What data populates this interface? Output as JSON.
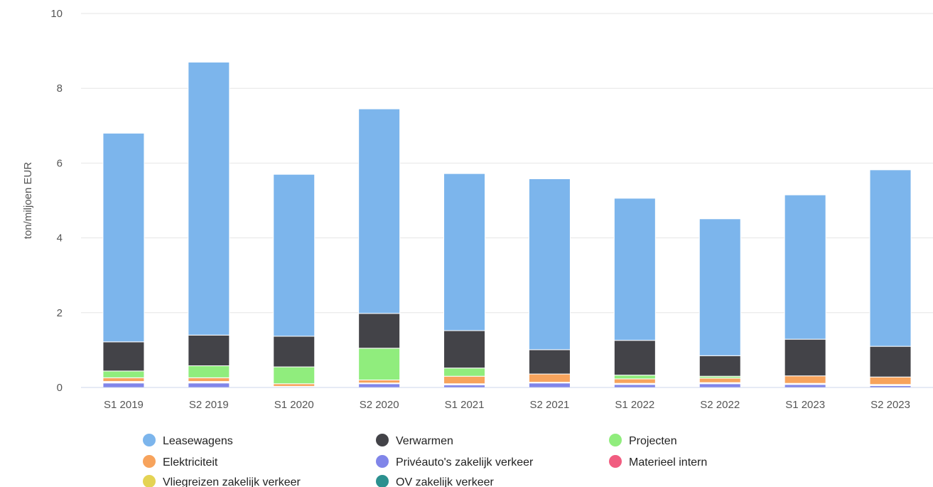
{
  "chart_data": {
    "type": "bar",
    "stacked": true,
    "title": "",
    "xlabel": "",
    "ylabel": "ton/miljoen EUR",
    "ylim": [
      0,
      10
    ],
    "yticks": [
      0,
      2,
      4,
      6,
      8,
      10
    ],
    "grid": true,
    "legend_position": "bottom",
    "categories": [
      "S1 2019",
      "S2 2019",
      "S1 2020",
      "S2 2020",
      "S1 2021",
      "S2 2021",
      "S1 2022",
      "S2 2022",
      "S1 2023",
      "S2 2023"
    ],
    "series": [
      {
        "name": "Privéauto's zakelijk verkeer",
        "color": "#8085e9",
        "values": [
          0.12,
          0.12,
          0.02,
          0.1,
          0.07,
          0.12,
          0.08,
          0.1,
          0.08,
          0.05
        ]
      },
      {
        "name": "OV zakelijk verkeer",
        "color": "#2b908f",
        "values": [
          0.02,
          0.02,
          0.01,
          0.02,
          0.02,
          0.01,
          0.02,
          0.02,
          0.02,
          0.02
        ]
      },
      {
        "name": "Vliegreizen zakelijk verkeer",
        "color": "#e4d354",
        "values": [
          0.01,
          0.01,
          0.0,
          0.0,
          0.01,
          0.01,
          0.01,
          0.01,
          0.01,
          0.01
        ]
      },
      {
        "name": "Materieel intern",
        "color": "#f15c80",
        "values": [
          0.01,
          0.01,
          0.0,
          0.0,
          0.0,
          0.0,
          0.0,
          0.0,
          0.0,
          0.0
        ]
      },
      {
        "name": "Elektriciteit",
        "color": "#f7a35c",
        "values": [
          0.1,
          0.1,
          0.07,
          0.08,
          0.2,
          0.22,
          0.12,
          0.12,
          0.2,
          0.2
        ]
      },
      {
        "name": "Projecten",
        "color": "#90ed7d",
        "values": [
          0.18,
          0.32,
          0.45,
          0.85,
          0.22,
          0.0,
          0.1,
          0.05,
          0.0,
          0.0
        ]
      },
      {
        "name": "Verwarmen",
        "color": "#434348",
        "values": [
          0.78,
          0.82,
          0.82,
          0.93,
          1.0,
          0.65,
          0.93,
          0.55,
          0.98,
          0.82
        ]
      },
      {
        "name": "Leasewagens",
        "color": "#7cb5ec",
        "values": [
          5.58,
          7.3,
          4.33,
          5.47,
          4.2,
          4.57,
          3.8,
          3.66,
          3.86,
          4.72
        ]
      }
    ],
    "legend_order": [
      "Leasewagens",
      "Verwarmen",
      "Projecten",
      "Elektriciteit",
      "Privéauto's zakelijk verkeer",
      "Materieel intern",
      "Vliegreizen zakelijk verkeer",
      "OV zakelijk verkeer"
    ]
  }
}
